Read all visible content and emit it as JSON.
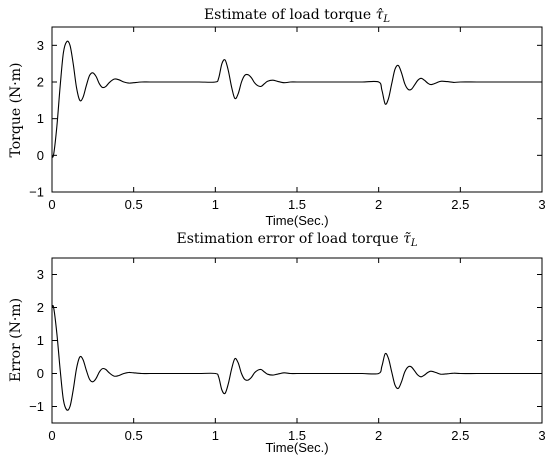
{
  "chart_data": [
    {
      "type": "line",
      "title": "Estimate of load torque τ̂_L",
      "xlabel": "Time(Sec.)",
      "ylabel": "Torque (N·m)",
      "xlim": [
        0,
        3
      ],
      "ylim": [
        -1,
        3.5
      ],
      "xticks": [
        0,
        0.5,
        1,
        1.5,
        2,
        2.5,
        3
      ],
      "xtick_labels": [
        "0",
        "0.5",
        "1",
        "1.5",
        "2",
        "2.5",
        "3"
      ],
      "yticks": [
        -1,
        0,
        1,
        2,
        3
      ],
      "ytick_labels": [
        "−1",
        "0",
        "1",
        "2",
        "3"
      ],
      "grid": false,
      "series": [
        {
          "x": [
            0,
            0.01,
            0.03,
            0.05,
            0.07,
            0.09,
            0.11,
            0.13,
            0.15,
            0.17,
            0.19,
            0.21,
            0.23,
            0.25,
            0.27,
            0.29,
            0.31,
            0.33,
            0.35,
            0.38,
            0.41,
            0.44,
            0.47,
            0.5,
            0.55,
            0.6,
            0.7,
            0.8,
            0.9,
            1.0,
            1.02,
            1.04,
            1.06,
            1.08,
            1.1,
            1.12,
            1.14,
            1.16,
            1.18,
            1.2,
            1.22,
            1.24,
            1.26,
            1.28,
            1.3,
            1.32,
            1.35,
            1.38,
            1.42,
            1.46,
            1.5,
            1.6,
            1.7,
            1.8,
            1.9,
            2.0,
            2.02,
            2.04,
            2.06,
            2.08,
            2.1,
            2.12,
            2.14,
            2.16,
            2.18,
            2.2,
            2.22,
            2.24,
            2.26,
            2.28,
            2.3,
            2.32,
            2.35,
            2.38,
            2.42,
            2.46,
            2.5,
            2.6,
            2.7,
            2.8,
            2.9,
            3.0
          ],
          "y": [
            -0.02,
            0.02,
            0.8,
            1.9,
            2.8,
            3.1,
            3.0,
            2.5,
            1.85,
            1.5,
            1.58,
            1.9,
            2.18,
            2.25,
            2.15,
            1.95,
            1.85,
            1.88,
            1.98,
            2.08,
            2.06,
            2.0,
            1.97,
            1.98,
            2.0,
            2.0,
            2.0,
            2.0,
            2.0,
            2.0,
            2.1,
            2.5,
            2.6,
            2.3,
            1.85,
            1.55,
            1.68,
            2.0,
            2.18,
            2.2,
            2.12,
            1.98,
            1.9,
            1.88,
            1.95,
            2.02,
            2.05,
            2.02,
            1.98,
            2.0,
            2.0,
            2.0,
            2.0,
            2.0,
            2.0,
            2.0,
            1.78,
            1.4,
            1.55,
            1.95,
            2.35,
            2.45,
            2.25,
            1.95,
            1.8,
            1.8,
            1.92,
            2.05,
            2.1,
            2.05,
            1.97,
            1.93,
            1.97,
            2.02,
            2.01,
            1.99,
            2.0,
            2.0,
            2.0,
            2.0,
            2.0,
            2.0
          ]
        }
      ]
    },
    {
      "type": "line",
      "title": "Estimation error of load torque τ̃_L",
      "xlabel": "Time(Sec.)",
      "ylabel": "Error (N·m)",
      "xlim": [
        0,
        3
      ],
      "ylim": [
        -1.5,
        3.5
      ],
      "xticks": [
        0,
        0.5,
        1,
        1.5,
        2,
        2.5,
        3
      ],
      "xtick_labels": [
        "0",
        "0.5",
        "1",
        "1.5",
        "2",
        "2.5",
        "3"
      ],
      "yticks": [
        -1,
        0,
        1,
        2,
        3
      ],
      "ytick_labels": [
        "−1",
        "0",
        "1",
        "2",
        "3"
      ],
      "grid": false,
      "series": [
        {
          "x": [
            0,
            0.01,
            0.03,
            0.05,
            0.07,
            0.09,
            0.11,
            0.13,
            0.15,
            0.17,
            0.19,
            0.21,
            0.23,
            0.25,
            0.27,
            0.29,
            0.31,
            0.33,
            0.35,
            0.38,
            0.41,
            0.44,
            0.47,
            0.5,
            0.55,
            0.6,
            0.7,
            0.8,
            0.9,
            1.0,
            1.02,
            1.04,
            1.06,
            1.08,
            1.1,
            1.12,
            1.14,
            1.16,
            1.18,
            1.2,
            1.22,
            1.24,
            1.26,
            1.28,
            1.3,
            1.32,
            1.35,
            1.38,
            1.42,
            1.46,
            1.5,
            1.6,
            1.7,
            1.8,
            1.9,
            2.0,
            2.02,
            2.04,
            2.06,
            2.08,
            2.1,
            2.12,
            2.14,
            2.16,
            2.18,
            2.2,
            2.22,
            2.24,
            2.26,
            2.28,
            2.3,
            2.32,
            2.35,
            2.38,
            2.42,
            2.46,
            2.5,
            2.6,
            2.7,
            2.8,
            2.9,
            3.0
          ],
          "y": [
            2.0,
            2.0,
            1.2,
            0.1,
            -0.8,
            -1.1,
            -1.0,
            -0.5,
            0.15,
            0.5,
            0.42,
            0.1,
            -0.18,
            -0.25,
            -0.15,
            0.05,
            0.15,
            0.12,
            0.02,
            -0.08,
            -0.06,
            0.0,
            0.03,
            0.02,
            0.0,
            0.0,
            0.0,
            0.0,
            0.0,
            0.0,
            -0.1,
            -0.5,
            -0.6,
            -0.3,
            0.15,
            0.45,
            0.32,
            0.0,
            -0.18,
            -0.2,
            -0.12,
            0.02,
            0.1,
            0.12,
            0.05,
            -0.02,
            -0.05,
            -0.02,
            0.02,
            0.0,
            0.0,
            0.0,
            0.0,
            0.0,
            0.0,
            0.0,
            0.22,
            0.6,
            0.45,
            0.05,
            -0.35,
            -0.45,
            -0.25,
            0.05,
            0.2,
            0.2,
            0.08,
            -0.05,
            -0.1,
            -0.05,
            0.03,
            0.07,
            0.03,
            -0.02,
            -0.01,
            0.01,
            0.0,
            0.0,
            0.0,
            0.0,
            0.0,
            0.0
          ]
        }
      ]
    }
  ]
}
